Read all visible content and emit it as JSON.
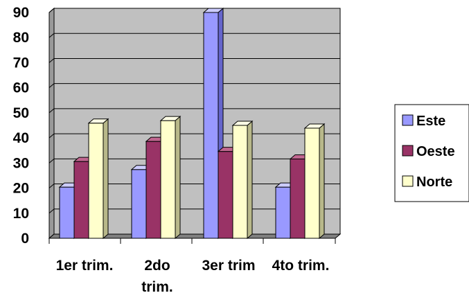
{
  "chart_data": {
    "type": "bar",
    "title": "",
    "xlabel": "",
    "ylabel": "",
    "categories": [
      "1er trim.",
      "2do trim.",
      "3er trim",
      "4to trim."
    ],
    "category_label_lines": [
      [
        "1er trim."
      ],
      [
        "2do",
        "trim."
      ],
      [
        "3er trim"
      ],
      [
        "4to trim."
      ]
    ],
    "series": [
      {
        "name": "Este",
        "values": [
          20.4,
          27.4,
          90,
          20.4
        ],
        "color": "#9999FF",
        "side_color": "#6666CC",
        "top_color": "#CCCCFF"
      },
      {
        "name": "Oeste",
        "values": [
          30.6,
          38.6,
          34.6,
          31.6
        ],
        "color": "#993366",
        "side_color": "#662244",
        "top_color": "#C0668F"
      },
      {
        "name": "Norte",
        "values": [
          45.9,
          46.9,
          45,
          43.9
        ],
        "color": "#FFFFCC",
        "side_color": "#B8B88A",
        "top_color": "#FFFFE6"
      }
    ],
    "ylim": [
      0,
      90
    ],
    "yticks": [
      0,
      10,
      20,
      30,
      40,
      50,
      60,
      70,
      80,
      90
    ],
    "grid": true,
    "wall_color": "#C0C0C0",
    "floor_color": "#808080",
    "legend_position": "right",
    "style": "3d-clustered-column"
  }
}
